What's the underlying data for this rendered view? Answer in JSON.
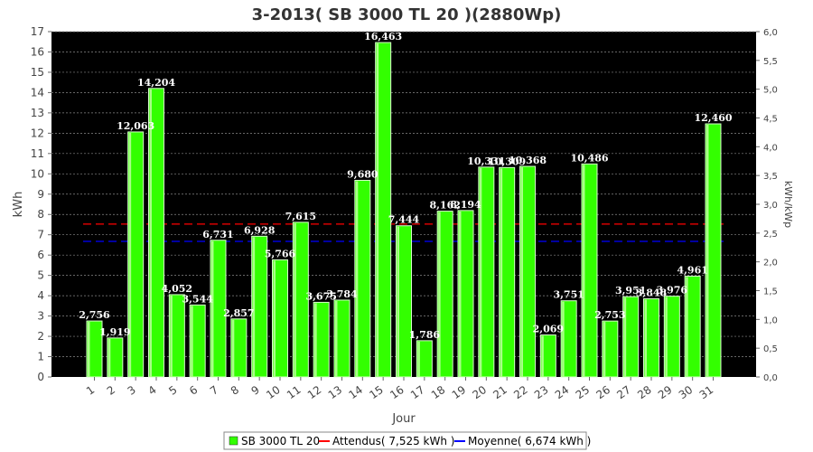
{
  "chart_data": {
    "type": "bar",
    "title": "3-2013( SB 3000 TL 20 )(2880Wp)",
    "xlabel": "Jour",
    "ylabel": "kWh",
    "y2label": "kWh/kWp",
    "ylim": [
      0,
      17
    ],
    "y2lim": [
      0,
      6
    ],
    "yticks": [
      0,
      1,
      2,
      3,
      4,
      5,
      6,
      7,
      8,
      9,
      10,
      11,
      12,
      13,
      14,
      15,
      16,
      17
    ],
    "y2ticks": [
      "0,0",
      "0,5",
      "1,0",
      "1,5",
      "2,0",
      "2,5",
      "3,0",
      "3,5",
      "4,0",
      "4,5",
      "5,0",
      "5,5",
      "6,0"
    ],
    "grid": true,
    "legend_position": "bottom",
    "categories": [
      "1",
      "2",
      "3",
      "4",
      "5",
      "6",
      "7",
      "8",
      "9",
      "10",
      "11",
      "12",
      "13",
      "14",
      "15",
      "16",
      "17",
      "18",
      "19",
      "20",
      "21",
      "22",
      "23",
      "24",
      "25",
      "26",
      "27",
      "28",
      "29",
      "30",
      "31"
    ],
    "series": [
      {
        "name": "SB 3000 TL 20",
        "color": "#33ff00",
        "values": [
          2.756,
          1.919,
          12.063,
          14.204,
          4.052,
          3.544,
          6.731,
          2.857,
          6.928,
          5.766,
          7.615,
          3.675,
          3.784,
          9.68,
          16.463,
          7.444,
          1.786,
          8.162,
          8.194,
          10.331,
          10.309,
          10.368,
          2.069,
          3.751,
          10.486,
          2.753,
          3.951,
          3.848,
          3.976,
          4.961,
          12.46
        ],
        "labels": [
          "2,756",
          "1,919",
          "12,063",
          "14,204",
          "4,052",
          "3,544",
          "6,731",
          "2,857",
          "6,928",
          "5,766",
          "7,615",
          "3,675",
          "3,784",
          "9,680",
          "16,463",
          "7,444",
          "1,786",
          "8,162",
          "8,194",
          "10,331",
          "10,309",
          "10,368",
          "2,069",
          "3,751",
          "10,486",
          "2,753",
          "3,951",
          "3,848",
          "3,976",
          "4,961",
          "12,460"
        ]
      }
    ],
    "reference_lines": [
      {
        "name": "Attendus( 7,525 kWh )",
        "value": 7.525,
        "color": "#ff0000",
        "style": "dashed"
      },
      {
        "name": "Moyenne( 6,674 kWh )",
        "value": 6.674,
        "color": "#0000ff",
        "style": "dashed"
      }
    ]
  }
}
